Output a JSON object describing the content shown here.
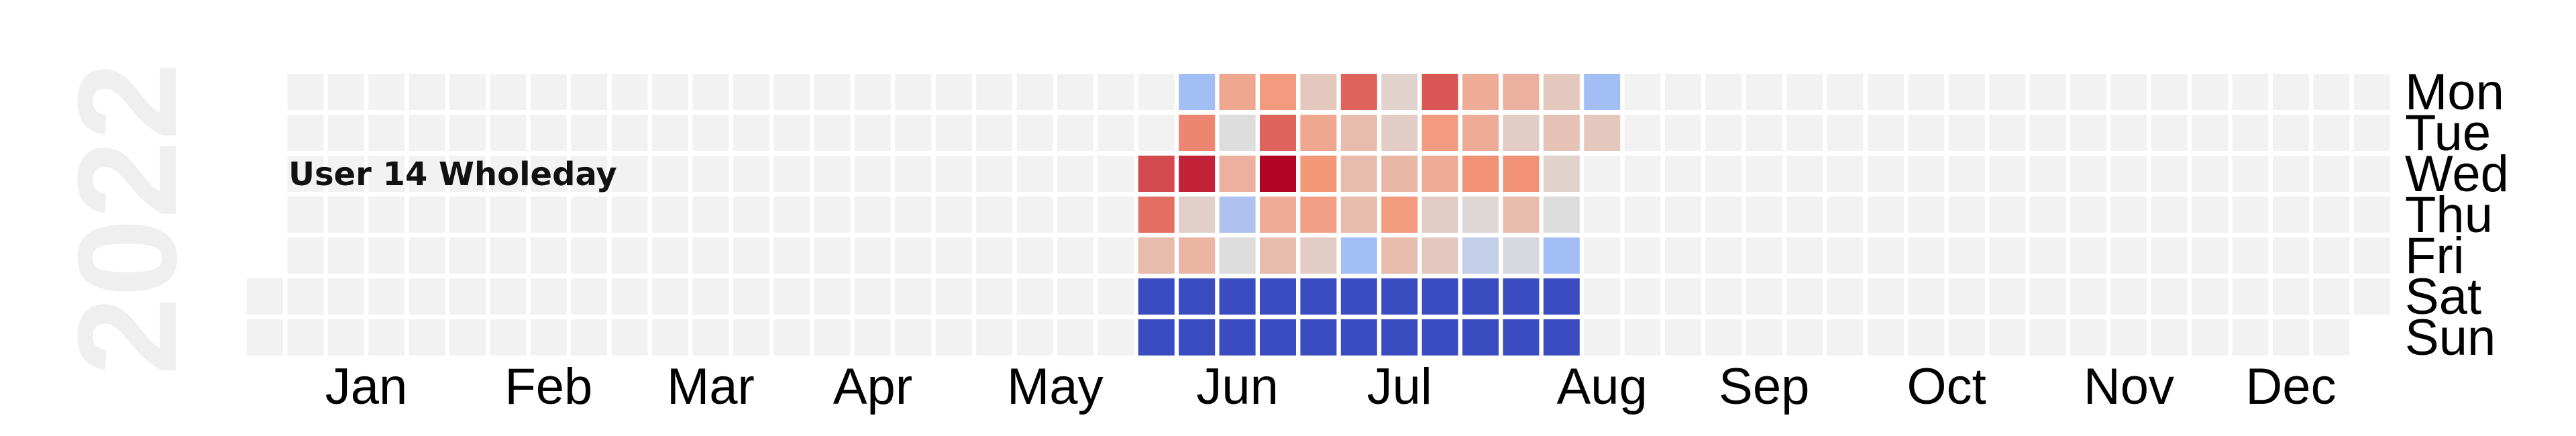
{
  "chart_data": {
    "type": "heatmap",
    "title": "User 14 Wholeday",
    "year": "2022",
    "day_labels": [
      "Mon",
      "Tue",
      "Wed",
      "Thu",
      "Fri",
      "Sat",
      "Sun"
    ],
    "month_labels": [
      "Jan",
      "Feb",
      "Mar",
      "Apr",
      "May",
      "Jun",
      "Jul",
      "Aug",
      "Sep",
      "Oct",
      "Nov",
      "Dec"
    ],
    "columns_per_year": 53,
    "first_week_start_row": 5,
    "last_week_end_row": 5,
    "empty_color": "#f2f2f2",
    "grid": false,
    "colormap": "coolwarm",
    "value_range": [
      0,
      1
    ],
    "data_columns": [
      {
        "week": 22,
        "values": [
          null,
          null,
          0.88,
          0.82,
          0.62,
          0.0,
          0.0
        ]
      },
      {
        "week": 23,
        "values": [
          0.32,
          0.78,
          0.95,
          0.55,
          0.65,
          0.0,
          0.0
        ]
      },
      {
        "week": 24,
        "values": [
          0.7,
          0.5,
          0.66,
          0.35,
          0.5,
          0.0,
          0.0
        ]
      },
      {
        "week": 25,
        "values": [
          0.74,
          0.84,
          1.0,
          0.68,
          0.62,
          0.0,
          0.0
        ]
      },
      {
        "week": 26,
        "values": [
          0.58,
          0.7,
          0.75,
          0.72,
          0.56,
          0.0,
          0.0
        ]
      },
      {
        "week": 27,
        "values": [
          0.84,
          0.62,
          0.62,
          0.62,
          0.32,
          0.0,
          0.0
        ]
      },
      {
        "week": 28,
        "values": [
          0.54,
          0.56,
          0.64,
          0.74,
          0.62,
          0.0,
          0.0
        ]
      },
      {
        "week": 29,
        "values": [
          0.86,
          0.74,
          0.68,
          0.56,
          0.58,
          0.0,
          0.0
        ]
      },
      {
        "week": 30,
        "values": [
          0.68,
          0.68,
          0.76,
          0.52,
          0.42,
          0.0,
          0.0
        ]
      },
      {
        "week": 31,
        "values": [
          0.66,
          0.56,
          0.76,
          0.62,
          0.48,
          0.0,
          0.0
        ]
      },
      {
        "week": 32,
        "values": [
          0.58,
          0.6,
          0.54,
          0.5,
          0.32,
          0.0,
          0.0
        ]
      },
      {
        "week": 33,
        "values": [
          0.32,
          0.58,
          null,
          null,
          null,
          null,
          null
        ]
      }
    ]
  }
}
